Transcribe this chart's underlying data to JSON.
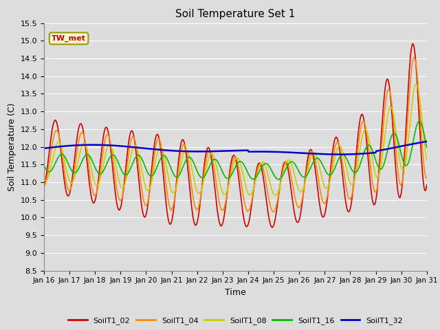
{
  "title": "Soil Temperature Set 1",
  "xlabel": "Time",
  "ylabel": "Soil Temperature (C)",
  "ylim": [
    8.5,
    15.5
  ],
  "yticks": [
    8.5,
    9.0,
    9.5,
    10.0,
    10.5,
    11.0,
    11.5,
    12.0,
    12.5,
    13.0,
    13.5,
    14.0,
    14.5,
    15.0,
    15.5
  ],
  "bg_color": "#dddddd",
  "plot_bg_color": "#dddddd",
  "grid_color": "#ffffff",
  "series": {
    "SoilT1_02": {
      "color": "#cc0000",
      "lw": 1.2
    },
    "SoilT1_04": {
      "color": "#ff8800",
      "lw": 1.2
    },
    "SoilT1_08": {
      "color": "#cccc00",
      "lw": 1.2
    },
    "SoilT1_16": {
      "color": "#00bb00",
      "lw": 1.2
    },
    "SoilT1_32": {
      "color": "#0000cc",
      "lw": 1.8
    }
  },
  "annotation": {
    "text": "TW_met",
    "fontsize": 8,
    "color": "#cc0000",
    "bg_color": "#ffffcc",
    "border_color": "#999900"
  },
  "xtick_days": [
    16,
    17,
    18,
    19,
    20,
    21,
    22,
    23,
    24,
    25,
    26,
    27,
    28,
    29,
    30,
    31
  ],
  "n_points": 720
}
